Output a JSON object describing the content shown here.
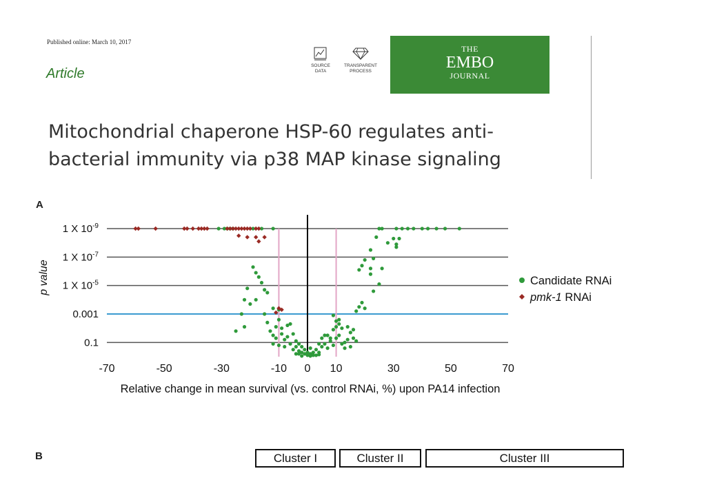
{
  "header": {
    "published": "Published online: March 10, 2017",
    "article_label": "Article",
    "badges": [
      {
        "name": "source-data",
        "line1": "SOURCE",
        "line2": "DATA"
      },
      {
        "name": "transparent-process",
        "line1": "TRANSPARENT",
        "line2": "PROCESS"
      }
    ],
    "journal_logo": {
      "line1": "THE",
      "line2": "EMBO",
      "line3": "JOURNAL",
      "bg_color": "#3b8a36"
    }
  },
  "title_lines": [
    "Mitochondrial chaperone HSP-60 regulates anti-",
    "bacterial immunity via p38 MAP kinase signaling"
  ],
  "panel_a_label": "A",
  "panel_b_label": "B",
  "chart_data": {
    "type": "scatter",
    "title": "",
    "xlabel": "Relative change in mean survival (vs. control RNAi, %) upon PA14 infection",
    "ylabel": "p value",
    "xlim": [
      -70,
      70
    ],
    "x_ticks": [
      -70,
      -50,
      -30,
      -10,
      0,
      10,
      30,
      50,
      70
    ],
    "y_scale": "log (-log10 p, 0 to 9)",
    "ylim_neglog10": [
      0,
      9
    ],
    "y_ticks": [
      {
        "neglog10": 9,
        "base": "1 X 10",
        "exp": "-9"
      },
      {
        "neglog10": 7,
        "base": "1 X 10",
        "exp": "-7"
      },
      {
        "neglog10": 5,
        "base": "1 X 10",
        "exp": "-5"
      },
      {
        "neglog10": 3,
        "base": "0.001",
        "exp": ""
      },
      {
        "neglog10": 1,
        "base": "0.1",
        "exp": ""
      }
    ],
    "threshold_line": {
      "neglog10": 3,
      "color": "#3a9ad0"
    },
    "vertical_lines": [
      {
        "x": -10,
        "color": "#e3a6c6"
      },
      {
        "x": 10,
        "color": "#e3a6c6"
      }
    ],
    "zero_line": {
      "x": 0,
      "color": "#000000"
    },
    "legend_position": "right",
    "series": [
      {
        "name": "Candidate RNAi",
        "name_italic": "",
        "name_rest": "",
        "marker": "circle",
        "color": "#2f9a3b",
        "points": [
          [
            -31,
            9
          ],
          [
            -29,
            9
          ],
          [
            -28,
            9
          ],
          [
            -27,
            9
          ],
          [
            -26,
            9
          ],
          [
            -12,
            9
          ],
          [
            -19,
            9
          ],
          [
            -16,
            9
          ],
          [
            -19,
            6.3
          ],
          [
            -18,
            5.9
          ],
          [
            -17,
            5.6
          ],
          [
            -16,
            5.2
          ],
          [
            -22,
            4.0
          ],
          [
            -21,
            4.8
          ],
          [
            -15,
            4.7
          ],
          [
            -14,
            4.5
          ],
          [
            -20,
            3.7
          ],
          [
            -23,
            3.0
          ],
          [
            -18,
            4.0
          ],
          [
            -15,
            3.0
          ],
          [
            -12,
            3.4
          ],
          [
            -10,
            3.3
          ],
          [
            -22,
            2.1
          ],
          [
            -25,
            1.8
          ],
          [
            -14,
            2.4
          ],
          [
            -11,
            2.1
          ],
          [
            -10,
            2.6
          ],
          [
            -9,
            2.0
          ],
          [
            -7,
            2.2
          ],
          [
            -6,
            2.3
          ],
          [
            -13,
            1.8
          ],
          [
            -12,
            1.5
          ],
          [
            -11,
            1.3
          ],
          [
            -9,
            1.6
          ],
          [
            -8,
            1.2
          ],
          [
            -7,
            1.4
          ],
          [
            -5,
            1.6
          ],
          [
            -4,
            1.1
          ],
          [
            -12,
            0.9
          ],
          [
            -10,
            0.8
          ],
          [
            -8,
            0.7
          ],
          [
            -6,
            0.9
          ],
          [
            -5,
            0.5
          ],
          [
            -4,
            0.7
          ],
          [
            -3,
            0.4
          ],
          [
            -2,
            0.3
          ],
          [
            -1,
            0.2
          ],
          [
            0,
            0.1
          ],
          [
            1,
            0.2
          ],
          [
            2,
            0.3
          ],
          [
            -3,
            0.2
          ],
          [
            -1,
            0.5
          ],
          [
            1,
            0.6
          ],
          [
            0,
            0.3
          ],
          [
            3,
            0.5
          ],
          [
            4,
            0.3
          ],
          [
            5,
            0.7
          ],
          [
            6,
            0.9
          ],
          [
            7,
            0.6
          ],
          [
            8,
            1.1
          ],
          [
            9,
            0.8
          ],
          [
            10,
            1.3
          ],
          [
            11,
            1.5
          ],
          [
            12,
            0.9
          ],
          [
            14,
            1.2
          ],
          [
            15,
            1.7
          ],
          [
            16,
            1.9
          ],
          [
            13,
            1.0
          ],
          [
            12,
            2.0
          ],
          [
            11,
            2.3
          ],
          [
            10,
            2.1
          ],
          [
            9,
            1.9
          ],
          [
            7,
            1.5
          ],
          [
            8,
            1.3
          ],
          [
            10,
            2.5
          ],
          [
            11,
            2.6
          ],
          [
            14,
            2.1
          ],
          [
            16,
            1.3
          ],
          [
            17,
            1.1
          ],
          [
            15,
            0.7
          ],
          [
            13,
            0.6
          ],
          [
            4,
            0.9
          ],
          [
            5,
            1.3
          ],
          [
            6,
            1.5
          ],
          [
            9,
            2.9
          ],
          [
            -2,
            0.7
          ],
          [
            -3,
            0.9
          ],
          [
            2,
            0.1
          ],
          [
            3,
            0.1
          ],
          [
            -2,
            0.05
          ],
          [
            1,
            0.05
          ],
          [
            -4,
            0.2
          ],
          [
            4,
            0.15
          ],
          [
            17,
            3.2
          ],
          [
            18,
            3.5
          ],
          [
            19,
            3.8
          ],
          [
            20,
            3.4
          ],
          [
            23,
            4.6
          ],
          [
            25,
            5.1
          ],
          [
            22,
            5.8
          ],
          [
            22,
            6.2
          ],
          [
            20,
            6.8
          ],
          [
            23,
            6.9
          ],
          [
            26,
            6.2
          ],
          [
            18,
            6.1
          ],
          [
            19,
            6.4
          ],
          [
            22,
            7.5
          ],
          [
            24,
            8.4
          ],
          [
            28,
            8.0
          ],
          [
            31,
            7.7
          ],
          [
            31,
            7.9
          ],
          [
            30,
            8.3
          ],
          [
            32,
            8.3
          ],
          [
            25,
            9
          ],
          [
            26,
            9
          ],
          [
            31,
            9
          ],
          [
            33,
            9
          ],
          [
            35,
            9
          ],
          [
            37,
            9
          ],
          [
            40,
            9
          ],
          [
            42,
            9
          ],
          [
            45,
            9
          ],
          [
            48,
            9
          ],
          [
            53,
            9
          ]
        ]
      },
      {
        "name": "",
        "name_italic": "pmk-1",
        "name_rest": " RNAi",
        "marker": "diamond",
        "color": "#9a2a24",
        "points": [
          [
            -60,
            9
          ],
          [
            -59,
            9
          ],
          [
            -53,
            9
          ],
          [
            -43,
            9
          ],
          [
            -42,
            9
          ],
          [
            -40,
            9
          ],
          [
            -38,
            9
          ],
          [
            -37,
            9
          ],
          [
            -36,
            9
          ],
          [
            -35,
            9
          ],
          [
            -28,
            9
          ],
          [
            -27,
            9
          ],
          [
            -26,
            9
          ],
          [
            -25,
            9
          ],
          [
            -24,
            9
          ],
          [
            -23,
            9
          ],
          [
            -22,
            9
          ],
          [
            -21,
            9
          ],
          [
            -20,
            9
          ],
          [
            -18,
            9
          ],
          [
            -17,
            9
          ],
          [
            -24,
            8.5
          ],
          [
            -21,
            8.4
          ],
          [
            -18,
            8.4
          ],
          [
            -15,
            8.4
          ],
          [
            -17,
            8.1
          ],
          [
            -11,
            3.1
          ],
          [
            -10,
            3.4
          ],
          [
            -9,
            3.3
          ]
        ]
      }
    ]
  },
  "panel_b": {
    "clusters": [
      "Cluster I",
      "Cluster II",
      "Cluster III"
    ]
  }
}
